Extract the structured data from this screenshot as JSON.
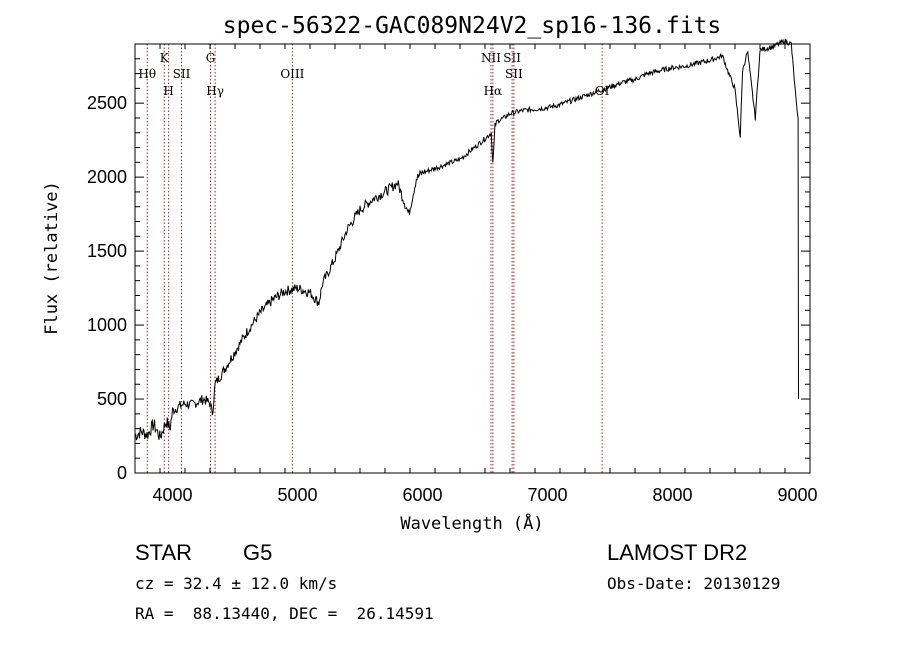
{
  "chart_data": {
    "type": "line",
    "title": "spec-56322-GAC089N24V2_sp16-136.fits",
    "xlabel": "Wavelength (Å)",
    "ylabel": "Flux (relative)",
    "xlim": [
      3700,
      9100
    ],
    "ylim": [
      0,
      2900
    ],
    "xticks": [
      4000,
      5000,
      6000,
      7000,
      8000,
      9000
    ],
    "yticks": [
      0,
      500,
      1000,
      1500,
      2000,
      2500
    ],
    "series": [
      {
        "name": "flux",
        "x": [
          3700,
          3750,
          3800,
          3850,
          3900,
          3950,
          3980,
          4000,
          4050,
          4100,
          4150,
          4200,
          4250,
          4300,
          4320,
          4340,
          4400,
          4500,
          4600,
          4700,
          4800,
          4900,
          5000,
          5100,
          5170,
          5200,
          5300,
          5400,
          5500,
          5600,
          5700,
          5800,
          5890,
          5950,
          6000,
          6100,
          6200,
          6300,
          6400,
          6500,
          6550,
          6563,
          6580,
          6600,
          6650,
          6700,
          6800,
          6900,
          7000,
          7100,
          7200,
          7300,
          7400,
          7500,
          7600,
          7700,
          7800,
          7900,
          8000,
          8100,
          8200,
          8300,
          8400,
          8450,
          8498,
          8542,
          8560,
          8600,
          8662,
          8700,
          8800,
          8900,
          8950,
          9000
        ],
        "y": [
          250,
          280,
          260,
          330,
          240,
          350,
          300,
          420,
          450,
          470,
          460,
          480,
          500,
          470,
          400,
          600,
          680,
          820,
          960,
          1080,
          1170,
          1230,
          1250,
          1220,
          1150,
          1280,
          1450,
          1650,
          1780,
          1850,
          1900,
          1960,
          1750,
          1990,
          2030,
          2060,
          2090,
          2120,
          2190,
          2260,
          2300,
          2080,
          2350,
          2380,
          2400,
          2430,
          2450,
          2460,
          2470,
          2490,
          2520,
          2550,
          2580,
          2610,
          2640,
          2660,
          2700,
          2720,
          2740,
          2750,
          2770,
          2790,
          2820,
          2700,
          2600,
          2270,
          2720,
          2850,
          2400,
          2860,
          2880,
          2920,
          2900,
          2400
        ]
      }
    ],
    "lines": [
      {
        "label": "Hθ",
        "x": 3798,
        "pos": "top"
      },
      {
        "label": "K",
        "x": 3934,
        "pos": "upper"
      },
      {
        "label": "H",
        "x": 3969,
        "pos": "lower"
      },
      {
        "label": "SII",
        "x": 4072,
        "pos": "top"
      },
      {
        "label": "G",
        "x": 4304,
        "pos": "upper"
      },
      {
        "label": "Hγ",
        "x": 4341,
        "pos": "lower"
      },
      {
        "label": "OIII",
        "x": 4959,
        "pos": "top"
      },
      {
        "label": "NII",
        "x": 6548,
        "pos": "upper"
      },
      {
        "label": "Hα",
        "x": 6563,
        "pos": "lower"
      },
      {
        "label": "SII",
        "x": 6717,
        "pos": "upper"
      },
      {
        "label": "SII",
        "x": 6731,
        "pos": "top"
      },
      {
        "label": "OI",
        "x": 7437,
        "pos": "lower"
      }
    ]
  },
  "info": {
    "object_type": "STAR",
    "subclass": "G5",
    "survey": "LAMOST DR2",
    "cz": "cz = 32.4 ± 12.0 km/s",
    "obs_date": "Obs-Date: 20130129",
    "radec": "RA =  88.13440, DEC =  26.14591"
  }
}
